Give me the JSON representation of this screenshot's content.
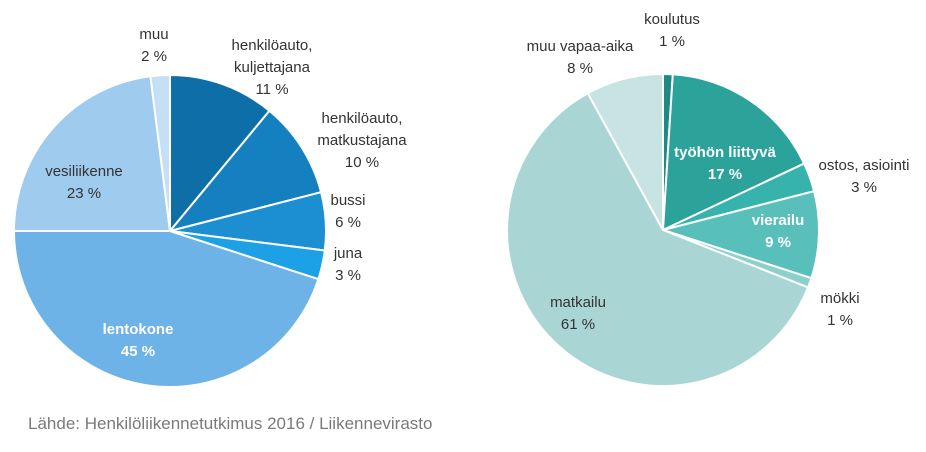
{
  "source": "Lähde: Henkilöliikennetutkimus 2016 / Liikennevirasto",
  "chart_data": [
    {
      "type": "pie",
      "title": "",
      "slices": [
        {
          "label": [
            "henkilöauto,",
            "kuljettajana"
          ],
          "value": 11,
          "value_label": "11 %",
          "color": "#0e6fa8"
        },
        {
          "label": [
            "henkilöauto,",
            "matkustajana"
          ],
          "value": 10,
          "value_label": "10 %",
          "color": "#1580c0"
        },
        {
          "label": [
            "bussi"
          ],
          "value": 6,
          "value_label": "6 %",
          "color": "#1b8fd2"
        },
        {
          "label": [
            "juna"
          ],
          "value": 3,
          "value_label": "3 %",
          "color": "#1ca0e6"
        },
        {
          "label": [
            "lentokone"
          ],
          "value": 45,
          "value_label": "45 %",
          "color": "#6db3e8"
        },
        {
          "label": [
            "vesiliikenne"
          ],
          "value": 23,
          "value_label": "23 %",
          "color": "#9fcbef"
        },
        {
          "label": [
            "muu"
          ],
          "value": 2,
          "value_label": "2 %",
          "color": "#c4dff6"
        }
      ]
    },
    {
      "type": "pie",
      "title": "",
      "slices": [
        {
          "label": [
            "koulutus"
          ],
          "value": 1,
          "value_label": "1 %",
          "color": "#1d8a84"
        },
        {
          "label": [
            "työhön liittyvä"
          ],
          "value": 17,
          "value_label": "17 %",
          "color": "#2ba29a"
        },
        {
          "label": [
            "ostos, asiointi"
          ],
          "value": 3,
          "value_label": "3 %",
          "color": "#37b3ad"
        },
        {
          "label": [
            "vierailu"
          ],
          "value": 9,
          "value_label": "9 %",
          "color": "#58bfba"
        },
        {
          "label": [
            "mökki"
          ],
          "value": 1,
          "value_label": "1 %",
          "color": "#8dcfcb"
        },
        {
          "label": [
            "matkailu"
          ],
          "value": 61,
          "value_label": "61 %",
          "color": "#a9d6d4"
        },
        {
          "label": [
            "muu vapaa-aika"
          ],
          "value": 8,
          "value_label": "8 %",
          "color": "#c7e3e2"
        }
      ]
    }
  ]
}
